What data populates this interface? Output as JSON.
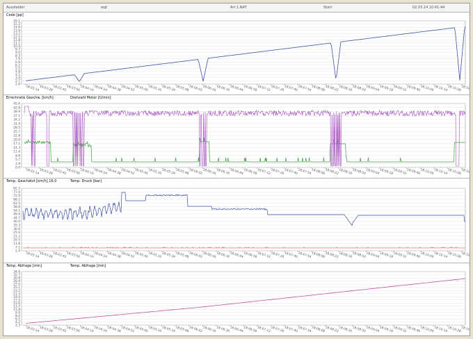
{
  "header": {
    "field1": "Ausstelder",
    "field2": "wqt",
    "field3": "Art 1.NAT",
    "field4": "Start",
    "field5": "02.03.14 10:41:44"
  },
  "colors": {
    "blue": "#3d4fa8",
    "purple": "#a64fc0",
    "green": "#3aa03a",
    "red": "#d23b2b",
    "magenta": "#c7509a",
    "grid": "#dcdcdc"
  },
  "panels": [
    {
      "id": "p1",
      "titles": [
        {
          "text": "Code [pp]",
          "color": "#3d4fa8"
        }
      ],
      "yticks": [
        "16.1",
        "15.2",
        "14.6",
        "13.9",
        "13.2",
        "12.5",
        "11.8",
        "11.1",
        "10.4",
        "9.7",
        "9.0",
        "8.3",
        "7.6",
        "6.9",
        "6.2",
        "5.5",
        "4.8",
        "4.1",
        "3.4",
        "2.7",
        "2.0"
      ],
      "xticks": [
        "18:03:14",
        "18:03:28",
        "18:03:42",
        "18:03:56",
        "18:04:10",
        "18:04:24",
        "18:04:38",
        "18:04:52",
        "18:05:06",
        "18:05:20",
        "18:05:34",
        "18:05:48",
        "18:06:02",
        "18:06:16",
        "18:06:30",
        "18:06:44",
        "18:06:58",
        "18:07:12",
        "18:07:26",
        "18:07:40",
        "18:07:54",
        "18:08:08",
        "18:08:22",
        "18:08:36",
        "18:08:50",
        "18:09:04",
        "18:09:18",
        "18:09:32",
        "18:09:46",
        "18:10:00",
        "18:10:14",
        "18:10:28",
        "18:10:42"
      ]
    },
    {
      "id": "p2",
      "titles": [
        {
          "text": "Errechnete Geschw. [km/h]",
          "color": "#3d4fa8"
        },
        {
          "text": "Drehzahl Motor [U/min]",
          "color": "#3aa03a"
        }
      ],
      "yticks": [
        "45.6",
        "42.8",
        "39.9",
        "37.1",
        "34.2",
        "31.4",
        "28.5",
        "25.7",
        "22.8",
        "20.0",
        "17.1",
        "14.3",
        "11.4",
        "8.6",
        "5.7",
        "2.9",
        "0.0"
      ],
      "xticks": [
        "18:03:14",
        "18:03:28",
        "18:03:42",
        "18:03:56",
        "18:04:10",
        "18:04:24",
        "18:04:38",
        "18:04:52",
        "18:05:06",
        "18:05:20",
        "18:05:34",
        "18:05:48",
        "18:06:02",
        "18:06:16",
        "18:06:30",
        "18:06:44",
        "18:06:58",
        "18:07:12",
        "18:07:26",
        "18:07:40",
        "18:07:54",
        "18:08:08",
        "18:08:22",
        "18:08:36",
        "18:08:50",
        "18:09:04",
        "18:09:18",
        "18:09:32",
        "18:09:46",
        "18:10:00",
        "18:10:14",
        "18:10:28",
        "18:10:42"
      ]
    },
    {
      "id": "p3",
      "titles": [
        {
          "text": "Temp. Geschätzt [km/h]  16.0",
          "color": "#3d4fa8"
        },
        {
          "text": "Temp. Druck [bar]",
          "color": "#d23b2b"
        }
      ],
      "yticks": [
        "82.3",
        "77.6",
        "72.9",
        "68.2",
        "63.5",
        "58.8",
        "54.1",
        "49.4",
        "44.7",
        "40.0",
        "35.3",
        "30.6",
        "25.9",
        "21.2",
        "16.5",
        "11.8",
        "7.1",
        "2.4"
      ],
      "xticks": [
        "18:03:14",
        "18:03:28",
        "18:03:42",
        "18:03:56",
        "18:04:10",
        "18:04:24",
        "18:04:38",
        "18:04:52",
        "18:05:06",
        "18:05:20",
        "18:05:34",
        "18:05:48",
        "18:06:02",
        "18:06:16",
        "18:06:30",
        "18:06:44",
        "18:06:58",
        "18:07:12",
        "18:07:26",
        "18:07:40",
        "18:07:54",
        "18:08:08",
        "18:08:22",
        "18:08:36",
        "18:08:50",
        "18:09:04",
        "18:09:18",
        "18:09:32",
        "18:09:46",
        "18:10:00",
        "18:10:14",
        "18:10:28",
        "18:10:42"
      ]
    },
    {
      "id": "p4",
      "titles": [
        {
          "text": "Temp. Abfrage [min]",
          "color": "#c7509a"
        },
        {
          "text": "Temp. Abfrage [min]",
          "color": "#3d4fa8"
        }
      ],
      "yticks": [
        "34.6",
        "32.7",
        "30.8",
        "28.9",
        "27.0",
        "25.1",
        "23.2",
        "21.3",
        "19.4",
        "17.5",
        "15.6",
        "13.7",
        "11.8",
        "9.9",
        "8.0",
        "6.1",
        "4.2",
        "2.3"
      ],
      "xticks": [
        "18:03:14",
        "18:03:28",
        "18:03:42",
        "18:03:56",
        "18:04:10",
        "18:04:24",
        "18:04:38",
        "18:04:52",
        "18:05:06",
        "18:05:20",
        "18:05:34",
        "18:05:48",
        "18:06:02",
        "18:06:16",
        "18:06:30",
        "18:06:44",
        "18:06:58",
        "18:07:12",
        "18:07:26",
        "18:07:40",
        "18:07:54",
        "18:08:08",
        "18:08:22",
        "18:08:36",
        "18:08:50",
        "18:09:04",
        "18:09:18",
        "18:09:32",
        "18:09:46",
        "18:10:00",
        "18:10:14",
        "18:10:28",
        "18:10:42"
      ]
    }
  ]
}
